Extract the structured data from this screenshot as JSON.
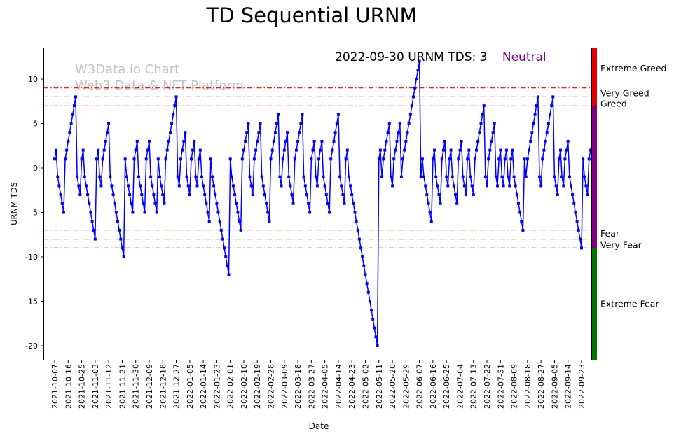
{
  "title": "TD Sequential URNM",
  "annotation": {
    "text": "2022-09-30 URNM TDS: 3",
    "status": "Neutral",
    "status_color": "#800080"
  },
  "watermark": {
    "line1": "W3Data.io Chart",
    "line2": "Web3 Data & NFT Platform"
  },
  "thresholds": [
    {
      "value": 9,
      "color": "#ee0000"
    },
    {
      "value": 8,
      "color": "#ff5050"
    },
    {
      "value": 7,
      "color": "#ffa0a0"
    },
    {
      "value": -7,
      "color": "#a0d4a0"
    },
    {
      "value": -8,
      "color": "#50a850"
    },
    {
      "value": -9,
      "color": "#008000"
    }
  ],
  "zone_labels": [
    {
      "text": "Extreme Greed",
      "color": "#ff0000",
      "value": 11.2
    },
    {
      "text": "Very Greed",
      "color": "#ff4545",
      "value": 8.4
    },
    {
      "text": "Greed",
      "color": "#ff9c9c",
      "value": 7.2
    },
    {
      "text": "Fear",
      "color": "#9ccc9c",
      "value": -7.4
    },
    {
      "text": "Very Fear",
      "color": "#2e8b2e",
      "value": -8.7
    },
    {
      "text": "Extreme Fear",
      "color": "#007000",
      "value": -15.3
    }
  ],
  "zone_bar": {
    "segments": [
      {
        "color": "#e60000",
        "from": 13.5,
        "to": 7
      },
      {
        "color": "#800080",
        "from": 7,
        "to": -9
      },
      {
        "color": "#007800",
        "from": -9,
        "to": -21.6
      }
    ]
  },
  "chart_data": {
    "type": "line",
    "title": "TD Sequential URNM",
    "xlabel": "Date",
    "ylabel": "URNM TDS",
    "ylim": [
      -21.6,
      13.5
    ],
    "yticks": [
      10,
      5,
      0,
      -5,
      -10,
      -15,
      -20
    ],
    "xtick_labels": [
      "2021-10-07",
      "2021-10-16",
      "2021-10-25",
      "2021-11-03",
      "2021-11-12",
      "2021-11-21",
      "2021-11-30",
      "2021-12-09",
      "2021-12-18",
      "2021-12-27",
      "2022-01-05",
      "2022-01-14",
      "2022-01-23",
      "2022-02-01",
      "2022-02-10",
      "2022-02-19",
      "2022-02-28",
      "2022-03-09",
      "2022-03-18",
      "2022-03-27",
      "2022-04-05",
      "2022-04-14",
      "2022-04-23",
      "2022-05-02",
      "2022-05-11",
      "2022-05-20",
      "2022-05-29",
      "2022-06-07",
      "2022-06-16",
      "2022-06-25",
      "2022-07-04",
      "2022-07-13",
      "2022-07-22",
      "2022-07-31",
      "2022-08-09",
      "2022-08-18",
      "2022-08-27",
      "2022-09-05",
      "2022-09-14",
      "2022-09-23"
    ],
    "xtick_day_step": 9,
    "series_name": "URNM TDS",
    "line_color": "#0000ff",
    "marker": "square",
    "start_date": "2021-10-07",
    "end_date": "2022-09-30",
    "frequency": "daily",
    "last_value": 3,
    "min_value": -20,
    "max_value": 12,
    "runs_encoding": "Estimated daily TD-Sequential counts; each positive run +n expands to values 1..n on consecutive days, each negative run -m expands to -1..-m",
    "runs": [
      2,
      -5,
      8,
      -3,
      2,
      -8,
      2,
      -2,
      5,
      -10,
      1,
      -5,
      3,
      -5,
      3,
      -5,
      1,
      -4,
      8,
      -2,
      4,
      -3,
      3,
      -2,
      2,
      -6,
      1,
      -12,
      1,
      -7,
      5,
      -3,
      5,
      -6,
      6,
      -2,
      4,
      -4,
      6,
      -5,
      3,
      -2,
      3,
      -5,
      6,
      -4,
      2,
      -20,
      2,
      -1,
      5,
      -2,
      5,
      -1,
      12,
      -1,
      1,
      -6,
      2,
      -4,
      3,
      -2,
      2,
      -4,
      3,
      -3,
      2,
      -3,
      7,
      -2,
      5,
      -2,
      2,
      -2,
      2,
      -2,
      2,
      -7,
      1,
      -1,
      8,
      -2,
      8,
      -3,
      2,
      -2,
      3,
      -9,
      1,
      -3,
      3
    ]
  }
}
